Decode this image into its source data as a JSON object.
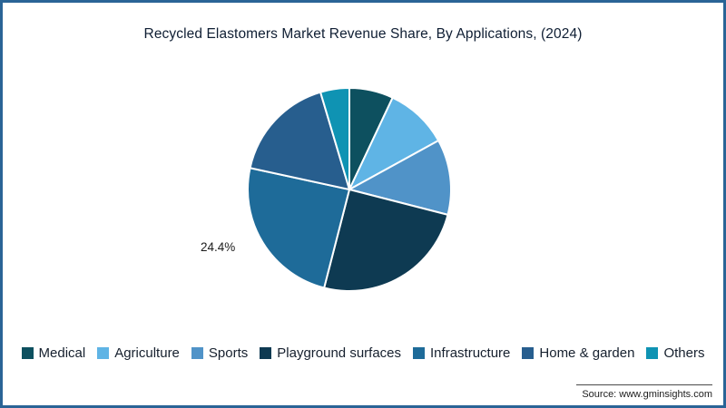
{
  "chart_data": {
    "type": "pie",
    "title": "Recycled Elastomers Market Revenue Share, By Applications, (2024)",
    "labels": [
      "Medical",
      "Agriculture",
      "Sports",
      "Playground surfaces",
      "Infrastructure",
      "Home & garden",
      "Others"
    ],
    "values": [
      7,
      10,
      12,
      25,
      24.4,
      17,
      4.6
    ],
    "colors": [
      "#0d505f",
      "#5fb4e5",
      "#5093c8",
      "#0e3a52",
      "#1e6b99",
      "#275e8e",
      "#0f93b3"
    ],
    "start_angle_deg": 0,
    "direction": "clockwise",
    "legend_position": "bottom",
    "shown_label": {
      "series": "Infrastructure",
      "text": "24.4%"
    }
  },
  "source": {
    "text": "Source: www.gminsights.com"
  },
  "style": {
    "border_color": "#2a6496",
    "slice_separator_color": "#ffffff"
  }
}
